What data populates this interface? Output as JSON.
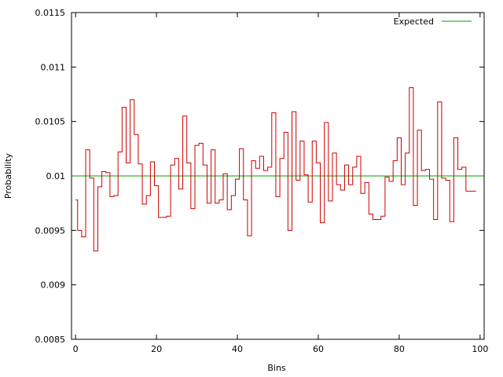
{
  "chart_data": {
    "type": "line",
    "title": "",
    "xlabel": "Bins",
    "ylabel": "Probability",
    "xlim": [
      -1,
      101
    ],
    "ylim": [
      0.0085,
      0.0115
    ],
    "x_ticks": [
      0,
      20,
      40,
      60,
      80,
      100
    ],
    "x_tick_labels": [
      "0",
      "20",
      "40",
      "60",
      "80",
      "100"
    ],
    "y_ticks": [
      0.0085,
      0.009,
      0.0095,
      0.01,
      0.0105,
      0.011,
      0.0115
    ],
    "y_tick_labels": [
      "0.0085",
      "0.009",
      "0.0095",
      "0.01",
      "0.0105",
      "0.011",
      "0.0115"
    ],
    "grid": false,
    "legend_position": "top-right",
    "series": [
      {
        "name": "",
        "style": "step",
        "color": "#cc0000",
        "x": [
          0,
          1,
          2,
          3,
          4,
          5,
          6,
          7,
          8,
          9,
          10,
          11,
          12,
          13,
          14,
          15,
          16,
          17,
          18,
          19,
          20,
          21,
          22,
          23,
          24,
          25,
          26,
          27,
          28,
          29,
          30,
          31,
          32,
          33,
          34,
          35,
          36,
          37,
          38,
          39,
          40,
          41,
          42,
          43,
          44,
          45,
          46,
          47,
          48,
          49,
          50,
          51,
          52,
          53,
          54,
          55,
          56,
          57,
          58,
          59,
          60,
          61,
          62,
          63,
          64,
          65,
          66,
          67,
          68,
          69,
          70,
          71,
          72,
          73,
          74,
          75,
          76,
          77,
          78,
          79,
          80,
          81,
          82,
          83,
          84,
          85,
          86,
          87,
          88,
          89,
          90,
          91,
          92,
          93,
          94,
          95,
          96,
          97,
          98,
          99
        ],
        "values": [
          0.00978,
          0.0095,
          0.00944,
          0.01024,
          0.00998,
          0.00931,
          0.0099,
          0.01004,
          0.01003,
          0.00981,
          0.00982,
          0.01022,
          0.01063,
          0.01012,
          0.0107,
          0.01038,
          0.01011,
          0.00974,
          0.00982,
          0.01013,
          0.00991,
          0.00962,
          0.00962,
          0.00963,
          0.0101,
          0.01016,
          0.00988,
          0.01055,
          0.01012,
          0.0097,
          0.01028,
          0.0103,
          0.0101,
          0.00975,
          0.01024,
          0.00975,
          0.00978,
          0.01002,
          0.00969,
          0.00982,
          0.00997,
          0.01025,
          0.00978,
          0.00945,
          0.01014,
          0.01007,
          0.01018,
          0.01005,
          0.01008,
          0.01058,
          0.00981,
          0.01016,
          0.0104,
          0.0095,
          0.01059,
          0.00996,
          0.01032,
          0.01001,
          0.00976,
          0.01032,
          0.01012,
          0.00957,
          0.01049,
          0.00977,
          0.01021,
          0.00992,
          0.00987,
          0.0101,
          0.00992,
          0.01008,
          0.01018,
          0.00984,
          0.00994,
          0.00965,
          0.0096,
          0.0096,
          0.00963,
          0.00999,
          0.00995,
          0.01014,
          0.01035,
          0.00992,
          0.01021,
          0.01081,
          0.00973,
          0.01042,
          0.01005,
          0.01006,
          0.00997,
          0.0096,
          0.01068,
          0.00998,
          0.00996,
          0.00958,
          0.01035,
          0.01006,
          0.01008,
          0.00986,
          0.00986,
          0.00986
        ]
      },
      {
        "name": "Expected",
        "style": "line",
        "color": "#00a000",
        "x": [
          -1,
          101
        ],
        "values": [
          0.01,
          0.01
        ]
      }
    ]
  }
}
